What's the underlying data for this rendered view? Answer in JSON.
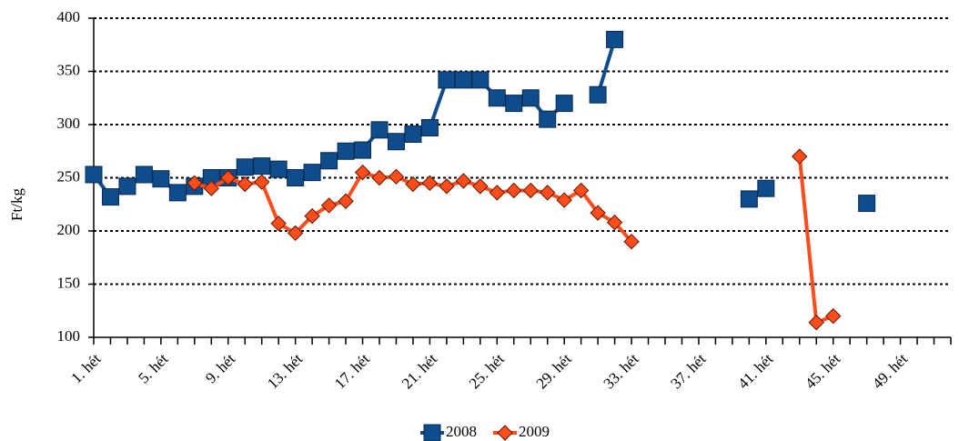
{
  "chart_data": {
    "type": "line",
    "y_label": "Ft/kg",
    "categories": [
      "1. hét",
      null,
      null,
      null,
      "5. hét",
      null,
      null,
      null,
      "9. hét",
      null,
      null,
      null,
      "13. hét",
      null,
      null,
      null,
      "17. hét",
      null,
      null,
      null,
      "21. hét",
      null,
      null,
      null,
      "25. hét",
      null,
      null,
      null,
      "29. hét",
      null,
      null,
      null,
      "33. hét",
      null,
      null,
      null,
      "37. hét",
      null,
      null,
      null,
      "41. hét",
      null,
      null,
      null,
      "45. hét",
      null,
      null,
      null,
      "49. hét",
      null,
      null,
      null
    ],
    "series": [
      {
        "name": "2008",
        "color": "#0f4c8c",
        "marker": "square",
        "values": [
          253,
          232,
          242,
          253,
          249,
          236,
          242,
          250,
          250,
          260,
          261,
          258,
          250,
          255,
          266,
          275,
          276,
          295,
          284,
          291,
          297,
          342,
          342,
          342,
          325,
          320,
          325,
          305,
          320,
          null,
          328,
          380,
          null,
          null,
          null,
          null,
          null,
          null,
          null,
          230,
          240,
          null,
          null,
          null,
          null,
          null,
          226,
          null,
          null,
          null,
          null,
          null
        ]
      },
      {
        "name": "2009",
        "color": "#ff4c1a",
        "marker": "diamond",
        "values": [
          null,
          null,
          null,
          null,
          null,
          null,
          245,
          240,
          250,
          244,
          246,
          207,
          198,
          214,
          224,
          228,
          255,
          250,
          251,
          244,
          245,
          242,
          247,
          242,
          236,
          238,
          238,
          236,
          229,
          238,
          217,
          208,
          190,
          null,
          null,
          null,
          null,
          null,
          null,
          null,
          null,
          null,
          270,
          114,
          120,
          null,
          null,
          null,
          null,
          null,
          null,
          null
        ]
      }
    ],
    "ylim": [
      100,
      400
    ],
    "yticks": [
      100,
      150,
      200,
      250,
      300,
      350,
      400
    ],
    "grid": true,
    "legend": "bottom"
  }
}
